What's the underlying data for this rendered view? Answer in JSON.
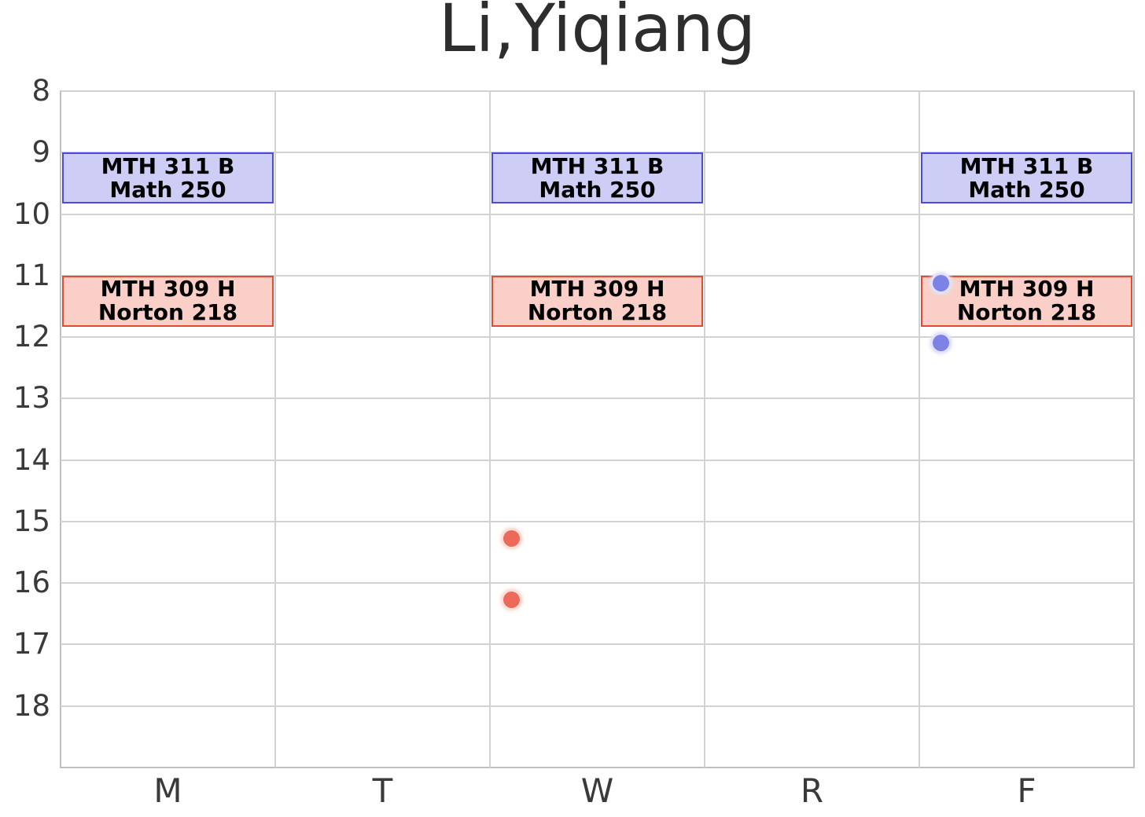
{
  "title": "Li,Yiqiang",
  "colors": {
    "background": "#ffffff",
    "grid": "#d2d2d2",
    "spine": "#bfbfbf",
    "title_text": "#2d2d2d",
    "tick_text": "#3a3a3a",
    "event_text": "#000000",
    "blue_fill": "#cdcdf6",
    "blue_border": "#4a4ae0",
    "red_fill": "#f9cfc7",
    "red_border": "#e6492f",
    "blue_dot": "#7d82e6",
    "blue_dot_halo": "#e2e3f8",
    "red_dot": "#ed6a5a",
    "red_dot_halo": "#fadfd9"
  },
  "chart_data": {
    "type": "schedule",
    "title": "Li,Yiqiang",
    "x_categories": [
      "M",
      "T",
      "W",
      "R",
      "F"
    ],
    "y_ticks": [
      8,
      9,
      10,
      11,
      12,
      13,
      14,
      15,
      16,
      17,
      18
    ],
    "y_range": [
      8,
      19
    ],
    "y_unit": "hour_of_day",
    "grid": "on",
    "events": [
      {
        "course": "MTH 311 B",
        "location": "Math 250",
        "days": [
          "M",
          "W",
          "F"
        ],
        "start_hour": 9.0,
        "end_hour": 9.83,
        "color": "blue"
      },
      {
        "course": "MTH 309 H",
        "location": "Norton 218",
        "days": [
          "M",
          "W",
          "F"
        ],
        "start_hour": 11.0,
        "end_hour": 11.83,
        "color": "red"
      }
    ],
    "points": [
      {
        "day": "F",
        "hour": 11.12,
        "color": "blue"
      },
      {
        "day": "F",
        "hour": 12.1,
        "color": "blue"
      },
      {
        "day": "W",
        "hour": 15.27,
        "color": "red"
      },
      {
        "day": "W",
        "hour": 16.27,
        "color": "red"
      }
    ],
    "point_x_offset_fraction": 0.1
  }
}
